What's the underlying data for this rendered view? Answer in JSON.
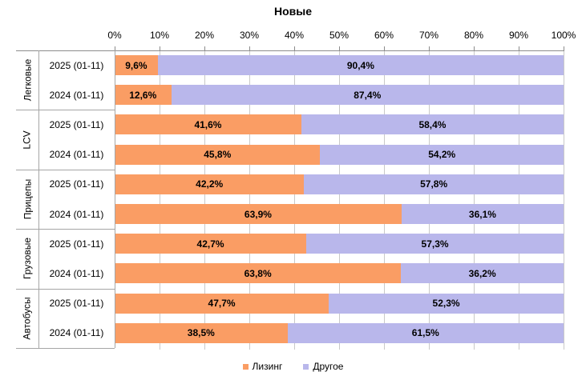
{
  "chart_data": {
    "type": "bar",
    "variant": "horizontal-stacked",
    "title": "Новые",
    "x_axis": {
      "position": "top",
      "min": 0,
      "max": 100,
      "tick_step": 10,
      "grid": true,
      "ticks": [
        "0%",
        "10%",
        "20%",
        "30%",
        "40%",
        "50%",
        "60%",
        "70%",
        "80%",
        "90%",
        "100%"
      ]
    },
    "colors": {
      "leasing": "#FA9D64",
      "other": "#B9B7EB",
      "gridline": "#C9C9C9",
      "axis": "#8C8C8C",
      "text": "#000000"
    },
    "legend": {
      "position": "bottom",
      "items": [
        {
          "label": "Лизинг",
          "color": "#FA9D64"
        },
        {
          "label": "Другое",
          "color": "#B9B7EB"
        }
      ]
    },
    "groups": [
      {
        "name": "Легковые",
        "rows": [
          {
            "period": "2025 (01-11)",
            "leasing": 9.6,
            "other": 90.4,
            "leasing_label": "9,6%",
            "other_label": "90,4%"
          },
          {
            "period": "2024 (01-11)",
            "leasing": 12.6,
            "other": 87.4,
            "leasing_label": "12,6%",
            "other_label": "87,4%"
          }
        ]
      },
      {
        "name": "LCV",
        "rows": [
          {
            "period": "2025 (01-11)",
            "leasing": 41.6,
            "other": 58.4,
            "leasing_label": "41,6%",
            "other_label": "58,4%"
          },
          {
            "period": "2024 (01-11)",
            "leasing": 45.8,
            "other": 54.2,
            "leasing_label": "45,8%",
            "other_label": "54,2%"
          }
        ]
      },
      {
        "name": "Прицепы",
        "rows": [
          {
            "period": "2025 (01-11)",
            "leasing": 42.2,
            "other": 57.8,
            "leasing_label": "42,2%",
            "other_label": "57,8%"
          },
          {
            "period": "2024 (01-11)",
            "leasing": 63.9,
            "other": 36.1,
            "leasing_label": "63,9%",
            "other_label": "36,1%"
          }
        ]
      },
      {
        "name": "Грузовые",
        "rows": [
          {
            "period": "2025 (01-11)",
            "leasing": 42.7,
            "other": 57.3,
            "leasing_label": "42,7%",
            "other_label": "57,3%"
          },
          {
            "period": "2024 (01-11)",
            "leasing": 63.8,
            "other": 36.2,
            "leasing_label": "63,8%",
            "other_label": "36,2%"
          }
        ]
      },
      {
        "name": "Автобусы",
        "rows": [
          {
            "period": "2025 (01-11)",
            "leasing": 47.7,
            "other": 52.3,
            "leasing_label": "47,7%",
            "other_label": "52,3%"
          },
          {
            "period": "2024 (01-11)",
            "leasing": 38.5,
            "other": 61.5,
            "leasing_label": "38,5%",
            "other_label": "61,5%"
          }
        ]
      }
    ]
  }
}
